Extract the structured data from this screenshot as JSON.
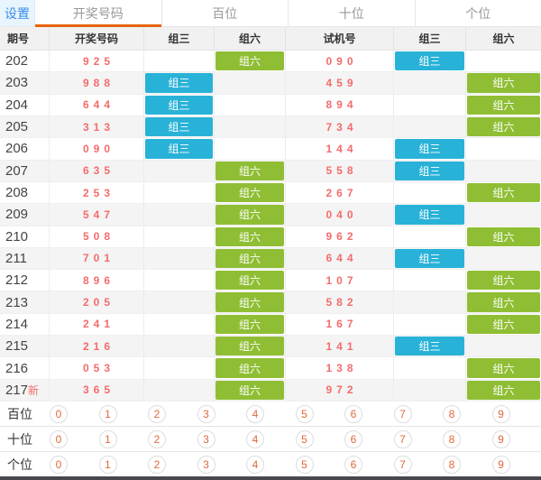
{
  "tabbar": {
    "settings_label": "设置",
    "tabs": [
      {
        "label": "开奖号码",
        "active": true
      },
      {
        "label": "百位",
        "active": false
      },
      {
        "label": "十位",
        "active": false
      },
      {
        "label": "个位",
        "active": false
      }
    ]
  },
  "colors": {
    "accent_orange": "#e8640c",
    "settings_blue": "#3a8ee6",
    "number_red": "#f56b6b",
    "badge_group3_blue": "#29b2d8",
    "badge_group6_green": "#8fbe34",
    "circle_digit_orange": "#e0673a",
    "bottom_bar_dark": "#47474f"
  },
  "table": {
    "headers": [
      "期号",
      "开奖号码",
      "组三",
      "组六",
      "试机号",
      "组三",
      "组六"
    ],
    "badge_labels": {
      "z3": "组三",
      "z6": "组六"
    },
    "rows": [
      {
        "issue": "202",
        "new_flag": "",
        "number": "925",
        "win_badge": "z6",
        "test": "090",
        "test_badge": "z3"
      },
      {
        "issue": "203",
        "new_flag": "",
        "number": "988",
        "win_badge": "z3",
        "test": "459",
        "test_badge": "z6"
      },
      {
        "issue": "204",
        "new_flag": "",
        "number": "644",
        "win_badge": "z3",
        "test": "894",
        "test_badge": "z6"
      },
      {
        "issue": "205",
        "new_flag": "",
        "number": "313",
        "win_badge": "z3",
        "test": "734",
        "test_badge": "z6"
      },
      {
        "issue": "206",
        "new_flag": "",
        "number": "090",
        "win_badge": "z3",
        "test": "144",
        "test_badge": "z3"
      },
      {
        "issue": "207",
        "new_flag": "",
        "number": "635",
        "win_badge": "z6",
        "test": "558",
        "test_badge": "z3"
      },
      {
        "issue": "208",
        "new_flag": "",
        "number": "253",
        "win_badge": "z6",
        "test": "267",
        "test_badge": "z6"
      },
      {
        "issue": "209",
        "new_flag": "",
        "number": "547",
        "win_badge": "z6",
        "test": "040",
        "test_badge": "z3"
      },
      {
        "issue": "210",
        "new_flag": "",
        "number": "508",
        "win_badge": "z6",
        "test": "962",
        "test_badge": "z6"
      },
      {
        "issue": "211",
        "new_flag": "",
        "number": "701",
        "win_badge": "z6",
        "test": "644",
        "test_badge": "z3"
      },
      {
        "issue": "212",
        "new_flag": "",
        "number": "896",
        "win_badge": "z6",
        "test": "107",
        "test_badge": "z6"
      },
      {
        "issue": "213",
        "new_flag": "",
        "number": "205",
        "win_badge": "z6",
        "test": "582",
        "test_badge": "z6"
      },
      {
        "issue": "214",
        "new_flag": "",
        "number": "241",
        "win_badge": "z6",
        "test": "167",
        "test_badge": "z6"
      },
      {
        "issue": "215",
        "new_flag": "",
        "number": "216",
        "win_badge": "z6",
        "test": "141",
        "test_badge": "z3"
      },
      {
        "issue": "216",
        "new_flag": "",
        "number": "053",
        "win_badge": "z6",
        "test": "138",
        "test_badge": "z6"
      },
      {
        "issue": "217",
        "new_flag": "新",
        "number": "365",
        "win_badge": "z6",
        "test": "972",
        "test_badge": "z6"
      }
    ]
  },
  "digit_panel": {
    "rows": [
      {
        "label": "百位",
        "digits": [
          "0",
          "1",
          "2",
          "3",
          "4",
          "5",
          "6",
          "7",
          "8",
          "9"
        ]
      },
      {
        "label": "十位",
        "digits": [
          "0",
          "1",
          "2",
          "3",
          "4",
          "5",
          "6",
          "7",
          "8",
          "9"
        ]
      },
      {
        "label": "个位",
        "digits": [
          "0",
          "1",
          "2",
          "3",
          "4",
          "5",
          "6",
          "7",
          "8",
          "9"
        ]
      }
    ]
  }
}
